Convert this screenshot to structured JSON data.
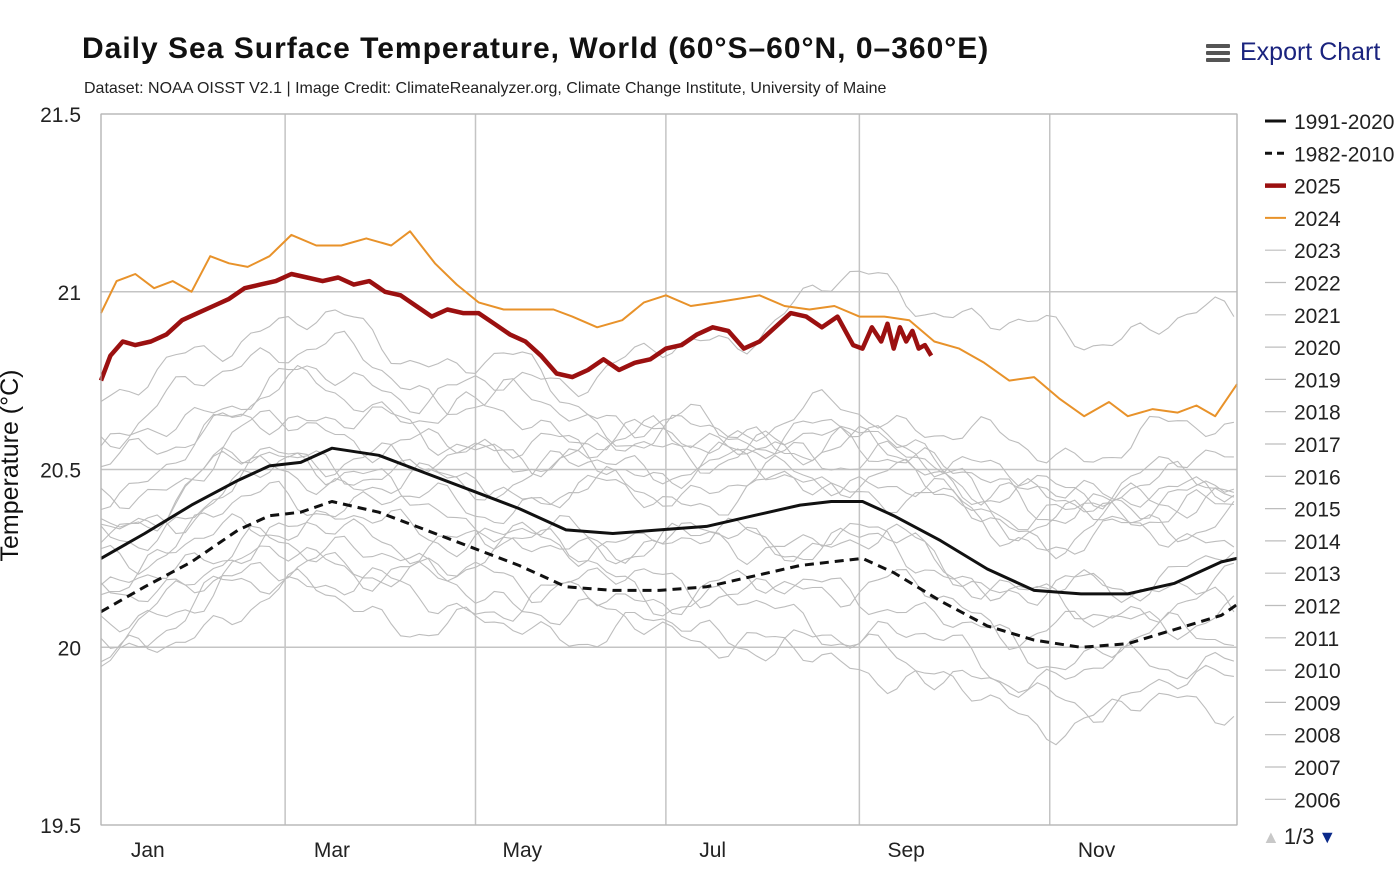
{
  "header": {
    "title": "Daily Sea Surface Temperature, World (60°S–60°N, 0–360°E)",
    "subtitle": "Dataset: NOAA OISST V2.1 | Image Credit: ClimateReanalyzer.org, Climate Change Institute, University of Maine",
    "export_label": "Export Chart"
  },
  "legend": {
    "items": [
      {
        "label": "1991-2020",
        "style": "solid",
        "color": "#111111"
      },
      {
        "label": "1982-2010",
        "style": "dashed",
        "color": "#111111"
      },
      {
        "label": "2025",
        "style": "thick",
        "color": "#9b1010"
      },
      {
        "label": "2024",
        "style": "solid",
        "color": "#e8922a"
      },
      {
        "label": "2023",
        "style": "thin",
        "color": "#bdbdbd"
      },
      {
        "label": "2022",
        "style": "thin",
        "color": "#bdbdbd"
      },
      {
        "label": "2021",
        "style": "thin",
        "color": "#bdbdbd"
      },
      {
        "label": "2020",
        "style": "thin",
        "color": "#bdbdbd"
      },
      {
        "label": "2019",
        "style": "thin",
        "color": "#bdbdbd"
      },
      {
        "label": "2018",
        "style": "thin",
        "color": "#bdbdbd"
      },
      {
        "label": "2017",
        "style": "thin",
        "color": "#bdbdbd"
      },
      {
        "label": "2016",
        "style": "thin",
        "color": "#bdbdbd"
      },
      {
        "label": "2015",
        "style": "thin",
        "color": "#bdbdbd"
      },
      {
        "label": "2014",
        "style": "thin",
        "color": "#bdbdbd"
      },
      {
        "label": "2013",
        "style": "thin",
        "color": "#bdbdbd"
      },
      {
        "label": "2012",
        "style": "thin",
        "color": "#bdbdbd"
      },
      {
        "label": "2011",
        "style": "thin",
        "color": "#bdbdbd"
      },
      {
        "label": "2010",
        "style": "thin",
        "color": "#bdbdbd"
      },
      {
        "label": "2009",
        "style": "thin",
        "color": "#bdbdbd"
      },
      {
        "label": "2008",
        "style": "thin",
        "color": "#bdbdbd"
      },
      {
        "label": "2007",
        "style": "thin",
        "color": "#bdbdbd"
      },
      {
        "label": "2006",
        "style": "thin",
        "color": "#bdbdbd"
      }
    ],
    "pager": "1/3"
  },
  "chart_data": {
    "type": "line",
    "title": "Daily Sea Surface Temperature, World (60°S–60°N, 0–360°E)",
    "ylabel": "Temperature (°C)",
    "xlabel": "",
    "ylim": [
      19.5,
      21.5
    ],
    "yticks": [
      19.5,
      20,
      20.5,
      21,
      21.5
    ],
    "ytick_labels": [
      "19.5",
      "20",
      "20.5",
      "21",
      "21.5"
    ],
    "xlim": [
      1,
      365
    ],
    "month_labels": [
      "Jan",
      "Mar",
      "May",
      "Jul",
      "Sep",
      "Nov"
    ],
    "month_label_days": [
      16,
      75,
      136,
      197,
      259,
      320
    ],
    "gridline_days": [
      1,
      60,
      121,
      182,
      244,
      305,
      365
    ],
    "grid": true,
    "legend_position": "right",
    "series": [
      {
        "name": "1991-2020",
        "style": "solid",
        "color": "#111111",
        "x": [
          1,
          15,
          30,
          45,
          55,
          65,
          75,
          90,
          105,
          120,
          135,
          150,
          165,
          180,
          195,
          210,
          225,
          235,
          245,
          255,
          270,
          285,
          300,
          315,
          330,
          345,
          360,
          365
        ],
        "y": [
          20.25,
          20.32,
          20.4,
          20.47,
          20.51,
          20.52,
          20.56,
          20.54,
          20.49,
          20.44,
          20.39,
          20.33,
          20.32,
          20.33,
          20.34,
          20.37,
          20.4,
          20.41,
          20.41,
          20.37,
          20.3,
          20.22,
          20.16,
          20.15,
          20.15,
          20.18,
          20.24,
          20.25
        ]
      },
      {
        "name": "1982-2010",
        "style": "dashed",
        "color": "#111111",
        "x": [
          1,
          15,
          30,
          45,
          55,
          65,
          75,
          90,
          105,
          120,
          135,
          150,
          165,
          180,
          195,
          210,
          225,
          235,
          245,
          255,
          270,
          285,
          300,
          315,
          330,
          345,
          360,
          365
        ],
        "y": [
          20.1,
          20.17,
          20.24,
          20.33,
          20.37,
          20.38,
          20.41,
          20.38,
          20.33,
          20.28,
          20.23,
          20.17,
          20.16,
          20.16,
          20.17,
          20.2,
          20.23,
          20.24,
          20.25,
          20.21,
          20.13,
          20.06,
          20.02,
          20.0,
          20.01,
          20.05,
          20.09,
          20.12
        ]
      },
      {
        "name": "2024",
        "style": "solid",
        "color": "#e8922a",
        "x": [
          1,
          6,
          12,
          18,
          24,
          30,
          36,
          42,
          48,
          55,
          62,
          70,
          78,
          86,
          94,
          100,
          108,
          115,
          122,
          130,
          138,
          146,
          152,
          160,
          168,
          175,
          182,
          190,
          198,
          205,
          212,
          220,
          228,
          236,
          244,
          252,
          260,
          268,
          276,
          284,
          292,
          300,
          308,
          316,
          324,
          330,
          338,
          346,
          352,
          358,
          365
        ],
        "y": [
          20.94,
          21.03,
          21.05,
          21.01,
          21.03,
          21.0,
          21.1,
          21.08,
          21.07,
          21.1,
          21.16,
          21.13,
          21.13,
          21.15,
          21.13,
          21.17,
          21.08,
          21.02,
          20.97,
          20.95,
          20.95,
          20.95,
          20.93,
          20.9,
          20.92,
          20.97,
          20.99,
          20.96,
          20.97,
          20.98,
          20.99,
          20.96,
          20.95,
          20.96,
          20.93,
          20.93,
          20.92,
          20.86,
          20.84,
          20.8,
          20.75,
          20.76,
          20.7,
          20.65,
          20.69,
          20.65,
          20.67,
          20.66,
          20.68,
          20.65,
          20.74
        ]
      },
      {
        "name": "2025",
        "style": "thick",
        "color": "#9b1010",
        "x": [
          1,
          4,
          8,
          12,
          17,
          22,
          27,
          32,
          37,
          42,
          47,
          52,
          57,
          62,
          67,
          72,
          77,
          82,
          87,
          92,
          97,
          102,
          107,
          112,
          117,
          122,
          127,
          132,
          137,
          142,
          147,
          152,
          157,
          162,
          167,
          172,
          177,
          182,
          187,
          192,
          197,
          202,
          207,
          212,
          217,
          222,
          227,
          232,
          237,
          242,
          245,
          248,
          251,
          253,
          255,
          257,
          259,
          261,
          263,
          265,
          267
        ],
        "y": [
          20.75,
          20.82,
          20.86,
          20.85,
          20.86,
          20.88,
          20.92,
          20.94,
          20.96,
          20.98,
          21.01,
          21.02,
          21.03,
          21.05,
          21.04,
          21.03,
          21.04,
          21.02,
          21.03,
          21.0,
          20.99,
          20.96,
          20.93,
          20.95,
          20.94,
          20.94,
          20.91,
          20.88,
          20.86,
          20.82,
          20.77,
          20.76,
          20.78,
          20.81,
          20.78,
          20.8,
          20.81,
          20.84,
          20.85,
          20.88,
          20.9,
          20.89,
          20.84,
          20.86,
          20.9,
          20.94,
          20.93,
          20.9,
          20.93,
          20.85,
          20.84,
          20.9,
          20.86,
          20.91,
          20.84,
          20.9,
          20.86,
          20.89,
          20.84,
          20.85,
          20.82
        ]
      }
    ],
    "background_years": [
      {
        "name": "2023",
        "x": [
          1,
          60,
          121,
          182,
          244,
          305,
          365
        ],
        "y": [
          20.55,
          20.75,
          20.72,
          20.82,
          21.02,
          20.88,
          20.92
        ]
      },
      {
        "name": "2022",
        "x": [
          1,
          60,
          121,
          182,
          244,
          305,
          365
        ],
        "y": [
          20.4,
          20.62,
          20.55,
          20.55,
          20.58,
          20.4,
          20.48
        ]
      },
      {
        "name": "2021",
        "x": [
          1,
          60,
          121,
          182,
          244,
          305,
          365
        ],
        "y": [
          20.35,
          20.55,
          20.48,
          20.52,
          20.55,
          20.38,
          20.44
        ]
      },
      {
        "name": "2020",
        "x": [
          1,
          60,
          121,
          182,
          244,
          305,
          365
        ],
        "y": [
          20.6,
          20.85,
          20.7,
          20.6,
          20.58,
          20.42,
          20.44
        ]
      },
      {
        "name": "2019",
        "x": [
          1,
          60,
          121,
          182,
          244,
          305,
          365
        ],
        "y": [
          20.5,
          20.72,
          20.65,
          20.58,
          20.6,
          20.45,
          20.52
        ]
      },
      {
        "name": "2018",
        "x": [
          1,
          60,
          121,
          182,
          244,
          305,
          365
        ],
        "y": [
          20.3,
          20.48,
          20.45,
          20.42,
          20.45,
          20.32,
          20.48
        ]
      },
      {
        "name": "2017",
        "x": [
          1,
          60,
          121,
          182,
          244,
          305,
          365
        ],
        "y": [
          20.45,
          20.66,
          20.58,
          20.5,
          20.48,
          20.35,
          20.36
        ]
      },
      {
        "name": "2016",
        "x": [
          1,
          60,
          121,
          182,
          244,
          305,
          365
        ],
        "y": [
          20.7,
          20.92,
          20.8,
          20.62,
          20.55,
          20.4,
          20.38
        ]
      },
      {
        "name": "2015",
        "x": [
          1,
          60,
          121,
          182,
          244,
          305,
          365
        ],
        "y": [
          20.3,
          20.5,
          20.52,
          20.58,
          20.66,
          20.55,
          20.62
        ]
      },
      {
        "name": "2014",
        "x": [
          1,
          60,
          121,
          182,
          244,
          305,
          365
        ],
        "y": [
          20.25,
          20.42,
          20.4,
          20.45,
          20.48,
          20.3,
          20.32
        ]
      },
      {
        "name": "2013",
        "x": [
          1,
          60,
          121,
          182,
          244,
          305,
          365
        ],
        "y": [
          20.2,
          20.36,
          20.32,
          20.3,
          20.3,
          20.15,
          20.2
        ]
      },
      {
        "name": "2012",
        "x": [
          1,
          60,
          121,
          182,
          244,
          305,
          365
        ],
        "y": [
          20.15,
          20.32,
          20.3,
          20.3,
          20.3,
          20.12,
          20.1
        ]
      },
      {
        "name": "2011",
        "x": [
          1,
          60,
          121,
          182,
          244,
          305,
          365
        ],
        "y": [
          20.05,
          20.25,
          20.2,
          20.18,
          20.15,
          19.98,
          20.05
        ]
      },
      {
        "name": "2010",
        "x": [
          1,
          60,
          121,
          182,
          244,
          305,
          365
        ],
        "y": [
          20.35,
          20.55,
          20.35,
          20.15,
          20.05,
          19.92,
          19.98
        ]
      },
      {
        "name": "2009",
        "x": [
          1,
          60,
          121,
          182,
          244,
          305,
          365
        ],
        "y": [
          20.05,
          20.25,
          20.25,
          20.3,
          20.3,
          20.15,
          20.25
        ]
      },
      {
        "name": "2008",
        "x": [
          1,
          60,
          121,
          182,
          244,
          305,
          365
        ],
        "y": [
          19.95,
          20.15,
          20.05,
          20.05,
          20.0,
          19.85,
          19.9
        ]
      },
      {
        "name": "2007",
        "x": [
          1,
          60,
          121,
          182,
          244,
          305,
          365
        ],
        "y": [
          20.15,
          20.28,
          20.15,
          20.05,
          19.95,
          19.8,
          19.85
        ]
      },
      {
        "name": "2006",
        "x": [
          1,
          60,
          121,
          182,
          244,
          305,
          365
        ],
        "y": [
          20.0,
          20.2,
          20.12,
          20.15,
          20.18,
          20.05,
          20.1
        ]
      }
    ]
  }
}
